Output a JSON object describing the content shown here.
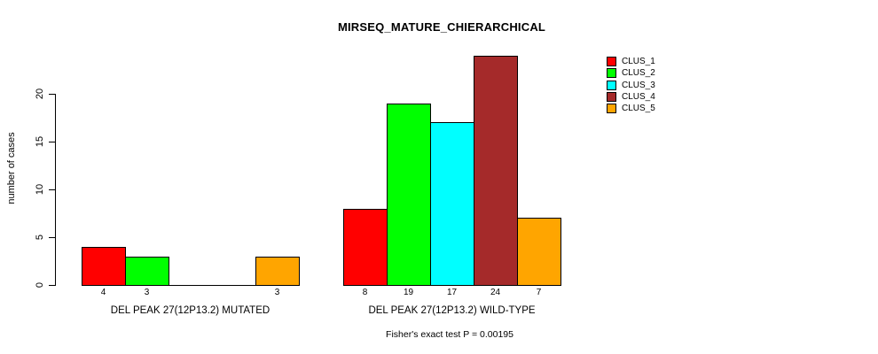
{
  "chart_data": {
    "type": "bar",
    "title": "MIRSEQ_MATURE_CHIERARCHICAL",
    "xlabel": "",
    "ylabel": "number of cases",
    "ylim": [
      0,
      24
    ],
    "yticks": [
      0,
      5,
      10,
      15,
      20
    ],
    "grid": false,
    "legend_position": "right-outside",
    "categories": [
      "DEL PEAK 27(12P13.2) MUTATED",
      "DEL PEAK 27(12P13.2) WILD-TYPE"
    ],
    "series": [
      {
        "name": "CLUS_1",
        "color": "#ff0000",
        "values": [
          4,
          8
        ]
      },
      {
        "name": "CLUS_2",
        "color": "#00ff00",
        "values": [
          3,
          19
        ]
      },
      {
        "name": "CLUS_3",
        "color": "#00ffff",
        "values": [
          0,
          17
        ]
      },
      {
        "name": "CLUS_4",
        "color": "#a52a2a",
        "values": [
          0,
          24
        ]
      },
      {
        "name": "CLUS_5",
        "color": "#ffa500",
        "values": [
          3,
          7
        ]
      }
    ],
    "bar_value_labels": [
      [
        "4",
        "3",
        "",
        "",
        "3"
      ],
      [
        "8",
        "19",
        "17",
        "24",
        "7"
      ]
    ],
    "annotation": "Fisher's exact test P = 0.00195"
  }
}
